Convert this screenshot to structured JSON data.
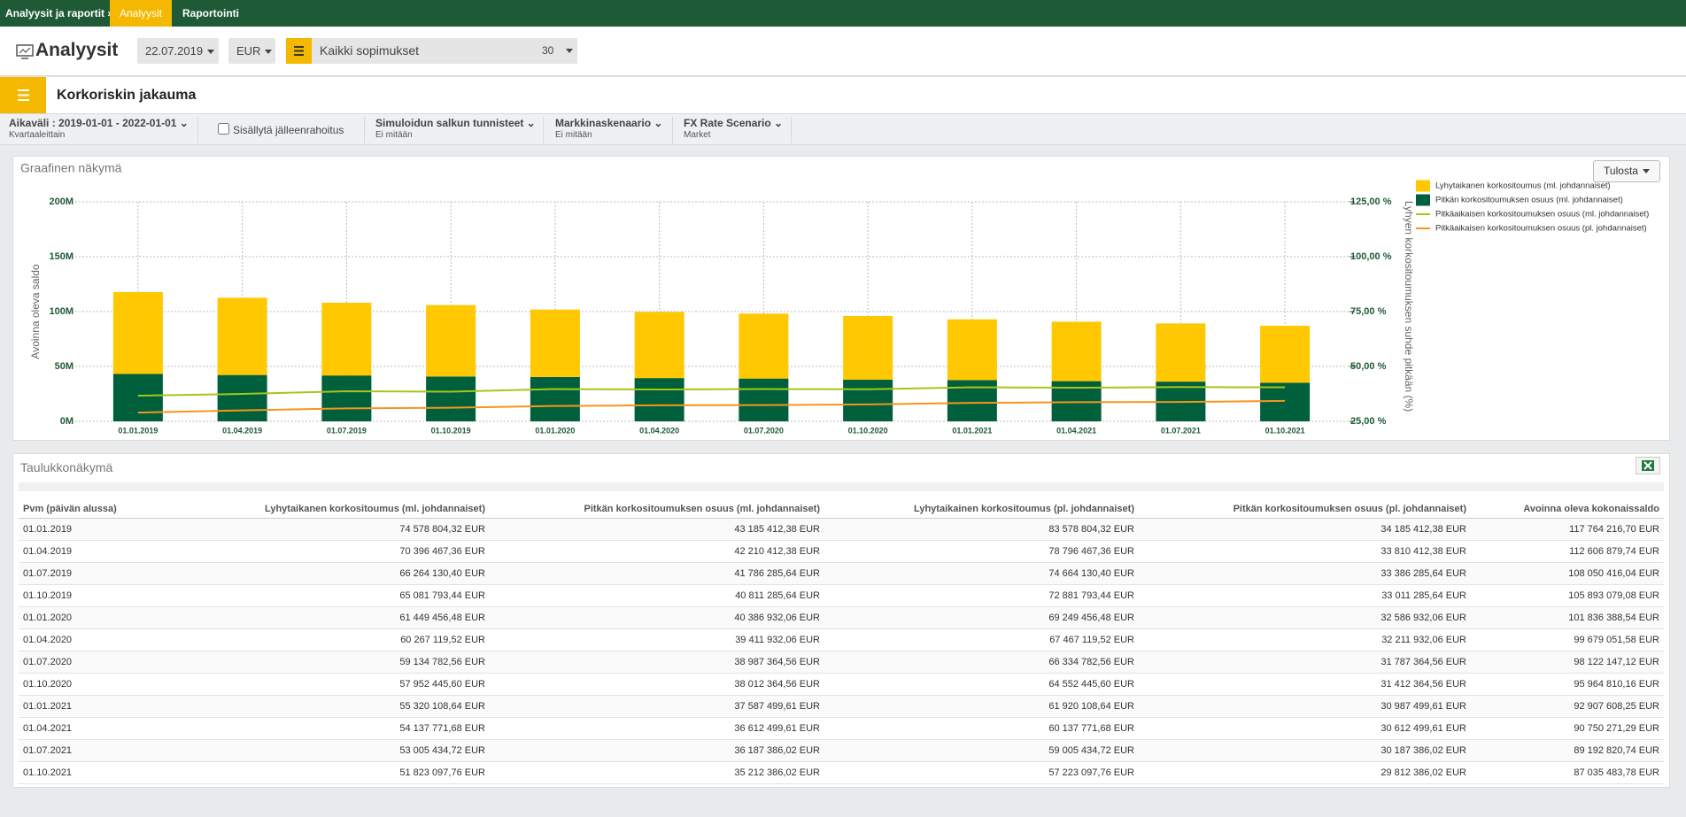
{
  "nav": {
    "breadcrumb": "Analyysit ja raportit ›",
    "tabs": [
      "Analyysit",
      "Raportointi"
    ]
  },
  "toolbar": {
    "title": "Analyysit",
    "date": "22.07.2019",
    "currency": "EUR",
    "portfolio": "Kaikki sopimukset",
    "count": "30"
  },
  "panel_title": "Korkoriskin jakauma",
  "filters": [
    {
      "label": "Aikaväli : 2019-01-01 - 2022-01-01",
      "sub": "Kvartaaleittain"
    },
    {
      "label": "Sisällytä jälleenrahoitus"
    },
    {
      "label": "Simuloidun salkun tunnisteet",
      "sub": "Ei mitään"
    },
    {
      "label": "Markkinaskenaario",
      "sub": "Ei mitään"
    },
    {
      "label": "FX Rate Scenario",
      "sub": "Market"
    }
  ],
  "chart_section": "Graafinen näkymä",
  "print_button": "Tulosta",
  "chart_data": {
    "type": "bar",
    "stacked": true,
    "grid": true,
    "legend": "right",
    "y_label": "Avoinna oleva saldo",
    "y2_label": "Lyhyen korkositoumuksen suhde pitkään (%)",
    "categories": [
      "01.01.2019",
      "01.04.2019",
      "01.07.2019",
      "01.10.2019",
      "01.01.2020",
      "01.04.2020",
      "01.07.2020",
      "01.10.2020",
      "01.01.2021",
      "01.04.2021",
      "01.07.2021",
      "01.10.2021"
    ],
    "ylim": [
      0,
      200000000
    ],
    "yticks": [
      {
        "value": 0,
        "label": "0M"
      },
      {
        "value": 50000000,
        "label": "50M"
      },
      {
        "value": 100000000,
        "label": "100M"
      },
      {
        "value": 150000000,
        "label": "150M"
      },
      {
        "value": 200000000,
        "label": "200M"
      }
    ],
    "y2lim": [
      25,
      125
    ],
    "y2ticks": [
      {
        "value": 25,
        "label": "25,00 %"
      },
      {
        "value": 50,
        "label": "50,00 %"
      },
      {
        "value": 75,
        "label": "75,00 %"
      },
      {
        "value": 100,
        "label": "100,00 %"
      },
      {
        "value": 125,
        "label": "125,00 %"
      }
    ],
    "series": [
      {
        "name": "Lyhytaikanen korkositoumus (ml. johdannaiset)",
        "color": "#ffc800",
        "values": [
          74578804.32,
          70396467.36,
          66264130.4,
          65081793.44,
          61449456.48,
          60267119.52,
          59134782.56,
          57952445.6,
          55320108.64,
          54137771.68,
          53005434.72,
          51823097.76
        ]
      },
      {
        "name": "Pitkän korkositoumuksen osuus (ml. johdannaiset)",
        "color": "#00603c",
        "values": [
          43185412.38,
          42210412.38,
          41786285.64,
          40811285.64,
          40386932.06,
          39411932.06,
          38987364.56,
          38012364.56,
          37587499.61,
          36612499.61,
          36187386.02,
          35212386.02
        ]
      },
      {
        "name": "Pitkäaikaisen korkositoumuksen osuus (ml. johdannaiset)",
        "color": "#a8c41c",
        "type": "line",
        "axis": "y2",
        "values": [
          36.7,
          37.5,
          38.7,
          38.5,
          39.7,
          39.5,
          39.7,
          39.6,
          40.5,
          40.3,
          40.6,
          40.5
        ]
      },
      {
        "name": "Pitkäaikaisen korkositoumuksen osuus (pl. johdannaiset)",
        "color": "#f7941d",
        "type": "line",
        "axis": "y2",
        "values": [
          29.0,
          30.0,
          30.9,
          31.2,
          32.0,
          32.3,
          32.4,
          32.7,
          33.4,
          33.7,
          33.8,
          34.3
        ]
      }
    ]
  },
  "table": {
    "title": "Taulukkonäkymä",
    "columns": [
      "Pvm (päivän alussa)",
      "Lyhytaikanen korkositoumus (ml. johdannaiset)",
      "Pitkän korkositoumuksen osuus (ml. johdannaiset)",
      "Lyhytaikainen korkositoumus (pl. johdannaiset)",
      "Pitkän korkositoumuksen osuus (pl. johdannaiset)",
      "Avoinna oleva kokonaissaldo"
    ],
    "rows": [
      [
        "01.01.2019",
        "74 578 804,32 EUR",
        "43 185 412,38 EUR",
        "83 578 804,32 EUR",
        "34 185 412,38 EUR",
        "117 764 216,70 EUR"
      ],
      [
        "01.04.2019",
        "70 396 467,36 EUR",
        "42 210 412,38 EUR",
        "78 796 467,36 EUR",
        "33 810 412,38 EUR",
        "112 606 879,74 EUR"
      ],
      [
        "01.07.2019",
        "66 264 130,40 EUR",
        "41 786 285,64 EUR",
        "74 664 130,40 EUR",
        "33 386 285,64 EUR",
        "108 050 416,04 EUR"
      ],
      [
        "01.10.2019",
        "65 081 793,44 EUR",
        "40 811 285,64 EUR",
        "72 881 793,44 EUR",
        "33 011 285,64 EUR",
        "105 893 079,08 EUR"
      ],
      [
        "01.01.2020",
        "61 449 456,48 EUR",
        "40 386 932,06 EUR",
        "69 249 456,48 EUR",
        "32 586 932,06 EUR",
        "101 836 388,54 EUR"
      ],
      [
        "01.04.2020",
        "60 267 119,52 EUR",
        "39 411 932,06 EUR",
        "67 467 119,52 EUR",
        "32 211 932,06 EUR",
        "99 679 051,58 EUR"
      ],
      [
        "01.07.2020",
        "59 134 782,56 EUR",
        "38 987 364,56 EUR",
        "66 334 782,56 EUR",
        "31 787 364,56 EUR",
        "98 122 147,12 EUR"
      ],
      [
        "01.10.2020",
        "57 952 445,60 EUR",
        "38 012 364,56 EUR",
        "64 552 445,60 EUR",
        "31 412 364,56 EUR",
        "95 964 810,16 EUR"
      ],
      [
        "01.01.2021",
        "55 320 108,64 EUR",
        "37 587 499,61 EUR",
        "61 920 108,64 EUR",
        "30 987 499,61 EUR",
        "92 907 608,25 EUR"
      ],
      [
        "01.04.2021",
        "54 137 771,68 EUR",
        "36 612 499,61 EUR",
        "60 137 771,68 EUR",
        "30 612 499,61 EUR",
        "90 750 271,29 EUR"
      ],
      [
        "01.07.2021",
        "53 005 434,72 EUR",
        "36 187 386,02 EUR",
        "59 005 434,72 EUR",
        "30 187 386,02 EUR",
        "89 192 820,74 EUR"
      ],
      [
        "01.10.2021",
        "51 823 097,76 EUR",
        "35 212 386,02 EUR",
        "57 223 097,76 EUR",
        "29 812 386,02 EUR",
        "87 035 483,78 EUR"
      ]
    ]
  }
}
